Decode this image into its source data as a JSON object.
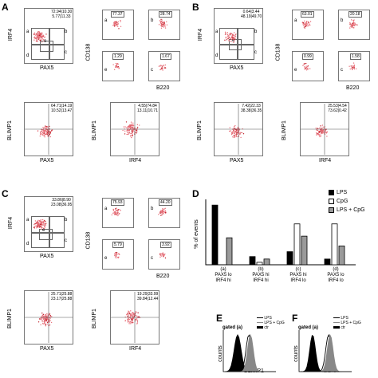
{
  "panels": {
    "A": {
      "letter": "A",
      "main_quad": [
        "72.94",
        "10.30",
        "5.77",
        "11.33"
      ],
      "main_x": "PAX5",
      "main_y": "IRF4",
      "gates": [
        "a",
        "b",
        "c",
        "d",
        "e"
      ],
      "small": [
        "77.37",
        "28.74",
        "1.29",
        "1.67"
      ],
      "small_letters": [
        "a",
        "b",
        "e",
        "c"
      ],
      "small_x": "B220",
      "small_y": "CD138",
      "bot1_quad": [
        "64.71",
        "14.19",
        "10.52",
        "13.47"
      ],
      "bot1_x": "PAX5",
      "bot1_y": "BLIMP1",
      "bot2_quad": [
        "4.55",
        "74.84",
        "13.11",
        "10.71"
      ],
      "bot2_x": "IRF4",
      "bot2_y": "BLIMP1"
    },
    "B": {
      "letter": "B",
      "main_quad": [
        "0.64",
        "3.44",
        "48.19",
        "49.70"
      ],
      "main_x": "PAX5",
      "main_y": "IRF4",
      "gates": [
        "a",
        "b",
        "c",
        "d",
        "e"
      ],
      "small": [
        "63.01",
        "20.18",
        "0.99",
        "1.58"
      ],
      "small_letters": [
        "a",
        "b",
        "e",
        "c"
      ],
      "small_x": "B220",
      "small_y": "CD138",
      "bot1_quad": [
        "7.42",
        "22.33",
        "38.38",
        "36.35"
      ],
      "bot1_x": "PAX5",
      "bot1_y": "BLIMP1",
      "bot2_quad": [
        "25.53",
        "4.54",
        "73.62",
        "0.42"
      ],
      "bot2_x": "IRF4",
      "bot2_y": "BLIMP1"
    },
    "C": {
      "letter": "C",
      "main_quad": [
        "33.86",
        "8.90",
        "23.08",
        "36.95"
      ],
      "main_x": "PAX5",
      "main_y": "IRF4",
      "gates": [
        "a",
        "b",
        "c",
        "d",
        "e"
      ],
      "small": [
        "75.93",
        "44.20",
        "5.79",
        "3.92"
      ],
      "small_letters": [
        "a",
        "b",
        "e",
        "c"
      ],
      "small_x": "B220",
      "small_y": "CD138",
      "bot1_quad": [
        "25.71",
        "25.88",
        "23.17",
        "25.88"
      ],
      "bot1_x": "PAX5",
      "bot1_y": "BLIMP1",
      "bot2_quad": [
        "19.29",
        "33.99",
        "39.84",
        "12.44"
      ],
      "bot2_x": "IRF4",
      "bot2_y": "BLIMP1"
    }
  },
  "panelD": {
    "letter": "D",
    "ylabel": "% of events",
    "legend": [
      "LPS",
      "CpG",
      "LPS + CpG"
    ],
    "groups": [
      {
        "tag": "(a)",
        "line1": "PAX5 lo",
        "line2": "IRF4  hi"
      },
      {
        "tag": "(b)",
        "line1": "PAX5 hi",
        "line2": "IRF4 hi"
      },
      {
        "tag": "(c)",
        "line1": "PAX5 hi",
        "line2": "IRF4 lo"
      },
      {
        "tag": "(d)",
        "line1": "PAX5 lo",
        "line2": "IRF4 lo"
      }
    ],
    "values": [
      [
        73,
        0,
        33
      ],
      [
        10,
        3,
        7
      ],
      [
        16,
        50,
        35
      ],
      [
        7,
        50,
        23
      ]
    ],
    "colors": [
      "#000000",
      "#ffffff",
      "#9a9a9a"
    ]
  },
  "panelE": {
    "letter": "E",
    "gated": "gated (a)",
    "legend": [
      "LPS",
      "LPS + CpG",
      "ctr"
    ],
    "xlabel": "BLIMP1",
    "ylabel": "counts"
  },
  "panelF": {
    "letter": "F",
    "gated": "gated (a)",
    "legend": [
      "LPS",
      "LPS + CpG",
      "ctr"
    ],
    "xlabel": "IRF4",
    "ylabel": "counts"
  }
}
